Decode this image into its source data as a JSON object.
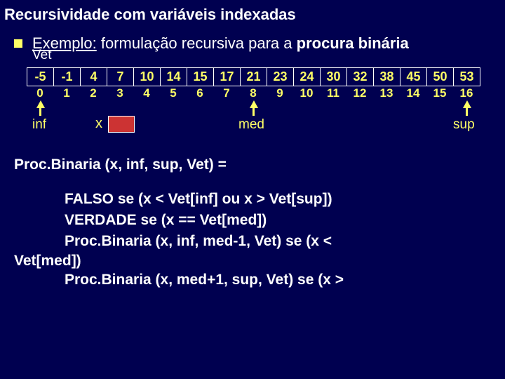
{
  "title": "Recursividade com variáveis indexadas",
  "example": {
    "label_prefix": "Exemplo:",
    "label_rest": " formulação recursiva para a ",
    "label_bold": "procura binária"
  },
  "vet_label": "Vet",
  "array": {
    "values": [
      "-5",
      "-1",
      "4",
      "7",
      "10",
      "14",
      "15",
      "17",
      "21",
      "23",
      "24",
      "30",
      "32",
      "38",
      "45",
      "50",
      "53"
    ],
    "indices": [
      "0",
      "1",
      "2",
      "3",
      "4",
      "5",
      "6",
      "7",
      "8",
      "9",
      "10",
      "11",
      "12",
      "13",
      "14",
      "15",
      "16"
    ],
    "cell_text_color": "#ffff66",
    "border_color": "#ffffff"
  },
  "pointers": {
    "inf": {
      "label": "inf",
      "col": 0
    },
    "med": {
      "label": "med",
      "col": 8
    },
    "sup": {
      "label": "sup",
      "col": 16
    },
    "x_label": "x",
    "x_box_color": "#cc3333"
  },
  "proc": {
    "signature": "Proc.Binaria (x, inf, sup, Vet)  =",
    "cases": [
      "FALSO    se  (x < Vet[inf] ou x > Vet[sup])",
      "VERDADE     se  (x == Vet[med])",
      "Proc.Binaria (x, inf, med-1, Vet)   se  (x <",
      "Proc.Binaria (x, med+1, sup, Vet)   se  (x >"
    ],
    "vetmed": "Vet[med])"
  },
  "colors": {
    "background": "#000050",
    "accent": "#ffff66",
    "text": "#ffffff"
  }
}
